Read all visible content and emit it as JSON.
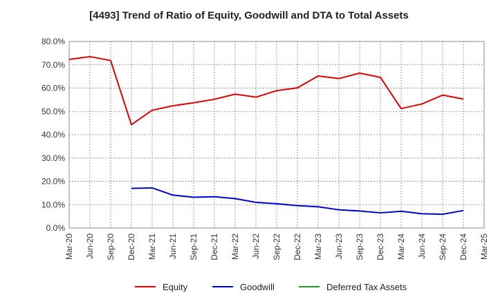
{
  "chart_data": {
    "type": "line",
    "title": "[4493]  Trend of Ratio of Equity, Goodwill and DTA to Total Assets",
    "xlabel": "",
    "ylabel": "",
    "ylim": [
      0,
      80
    ],
    "y_ticks": [
      "0.0%",
      "10.0%",
      "20.0%",
      "30.0%",
      "40.0%",
      "50.0%",
      "60.0%",
      "70.0%",
      "80.0%"
    ],
    "x_ticks": [
      "Mar-20",
      "Jun-20",
      "Sep-20",
      "Dec-20",
      "Mar-21",
      "Jun-21",
      "Sep-21",
      "Dec-21",
      "Mar-22",
      "Jun-22",
      "Sep-22",
      "Dec-22",
      "Mar-23",
      "Jun-23",
      "Sep-23",
      "Dec-23",
      "Mar-24",
      "Jun-24",
      "Sep-24",
      "Dec-24",
      "Mar-25"
    ],
    "grid": true,
    "legend_position": "bottom",
    "series": [
      {
        "name": "Equity",
        "color": "#dd0000",
        "values": [
          72.3,
          73.5,
          71.8,
          44.3,
          50.5,
          52.4,
          53.7,
          55.2,
          57.4,
          56.1,
          58.9,
          60.1,
          65.2,
          64.1,
          66.4,
          64.6,
          51.2,
          53.2,
          57.0,
          55.3,
          null
        ]
      },
      {
        "name": "Goodwill",
        "color": "#0000cc",
        "values": [
          null,
          null,
          null,
          17.0,
          17.2,
          14.1,
          13.2,
          13.4,
          12.6,
          11.0,
          10.4,
          9.6,
          9.1,
          7.8,
          7.3,
          6.5,
          7.2,
          6.1,
          5.9,
          7.5,
          null
        ]
      },
      {
        "name": "Deferred Tax Assets",
        "color": "#229922",
        "values": [
          null,
          null,
          null,
          null,
          null,
          null,
          null,
          null,
          null,
          null,
          null,
          null,
          null,
          null,
          null,
          null,
          null,
          null,
          null,
          null,
          null
        ]
      }
    ]
  }
}
